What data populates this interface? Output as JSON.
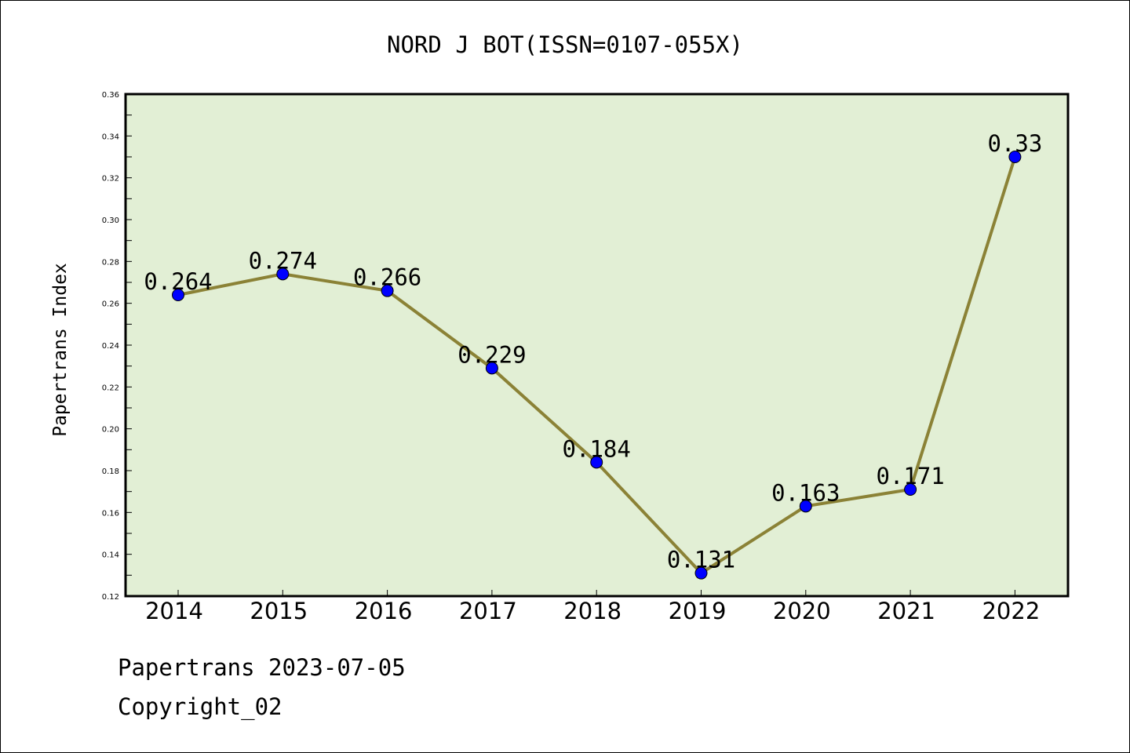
{
  "chart_data": {
    "type": "line",
    "title": "NORD J BOT(ISSN=0107-055X)",
    "xlabel": "",
    "ylabel": "Papertrans Index",
    "categories": [
      "2014",
      "2015",
      "2016",
      "2017",
      "2018",
      "2019",
      "2020",
      "2021",
      "2022"
    ],
    "values": [
      0.264,
      0.274,
      0.266,
      0.229,
      0.184,
      0.131,
      0.163,
      0.171,
      0.33
    ],
    "data_labels": [
      "0.264",
      "0.274",
      "0.266",
      "0.229",
      "0.184",
      "0.131",
      "0.163",
      "0.171",
      "0.33"
    ],
    "ylim": [
      0.12,
      0.36
    ],
    "yticks": [
      "0.12",
      "0.14",
      "0.16",
      "0.18",
      "0.20",
      "0.22",
      "0.24",
      "0.26",
      "0.28",
      "0.30",
      "0.32",
      "0.34",
      "0.36"
    ],
    "grid": false,
    "colors": {
      "plot_background": "#e2efd5",
      "line": "#8b8236",
      "marker": "#0000ff"
    }
  },
  "footer": {
    "source": "Papertrans 2023-07-05",
    "copyright": "Copyright_02"
  }
}
